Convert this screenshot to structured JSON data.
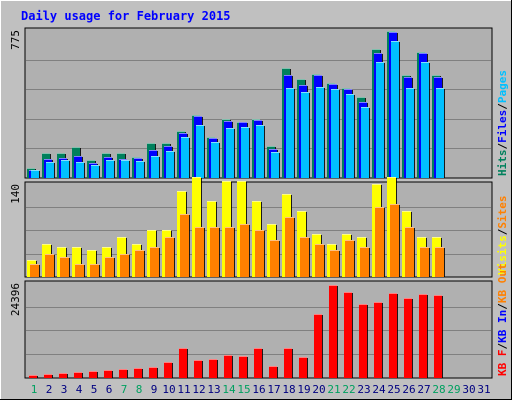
{
  "title": "Daily usage for February 2015",
  "colors": {
    "background": "#C0C0C0",
    "panel": "#B0B0B0",
    "border": "#000000",
    "title_text": "#0000FF",
    "weekday_label": "#000080",
    "weekend_label": "#00A060",
    "hits": "#00805C",
    "files": "#0000FF",
    "pages": "#00C0FF",
    "visits": "#FFFF00",
    "sites": "#FF8000",
    "kbin": "#0000FF",
    "kbout": "#FF8000",
    "kbf": "#FF0000"
  },
  "chart_data": [
    {
      "type": "bar",
      "name": "hits-files-pages",
      "legend": [
        "Hits",
        "Files",
        "Pages"
      ],
      "ymax_label": "775",
      "ymax": 775,
      "categories": [
        "1",
        "2",
        "3",
        "4",
        "5",
        "6",
        "7",
        "8",
        "9",
        "10",
        "11",
        "12",
        "13",
        "14",
        "15",
        "16",
        "17",
        "18",
        "19",
        "20",
        "21",
        "22",
        "23",
        "24",
        "25",
        "26",
        "27",
        "28",
        "29",
        "30",
        "31"
      ],
      "weekend_days": [
        "1",
        "7",
        "8",
        "14",
        "15",
        "21",
        "22",
        "28",
        "29"
      ],
      "series": [
        {
          "name": "Hits",
          "values": [
            50,
            130,
            130,
            160,
            95,
            130,
            130,
            110,
            185,
            185,
            245,
            330,
            215,
            310,
            295,
            310,
            165,
            575,
            520,
            545,
            500,
            470,
            425,
            675,
            770,
            540,
            660,
            540,
            0,
            0,
            0
          ]
        },
        {
          "name": "Files",
          "values": [
            40,
            100,
            105,
            115,
            80,
            110,
            100,
            105,
            145,
            165,
            235,
            325,
            210,
            300,
            295,
            305,
            150,
            540,
            485,
            540,
            490,
            465,
            400,
            655,
            765,
            530,
            655,
            530,
            0,
            0,
            0
          ]
        },
        {
          "name": "Pages",
          "values": [
            40,
            85,
            95,
            85,
            70,
            95,
            95,
            90,
            115,
            140,
            215,
            275,
            190,
            260,
            265,
            280,
            135,
            470,
            450,
            475,
            465,
            440,
            370,
            605,
            715,
            470,
            605,
            470,
            0,
            0,
            0
          ]
        }
      ]
    },
    {
      "type": "bar",
      "name": "visits-sites",
      "legend": [
        "Visits",
        "Sites"
      ],
      "ymax_label": "140",
      "ymax": 140,
      "categories": [
        "1",
        "2",
        "3",
        "4",
        "5",
        "6",
        "7",
        "8",
        "9",
        "10",
        "11",
        "12",
        "13",
        "14",
        "15",
        "16",
        "17",
        "18",
        "19",
        "20",
        "21",
        "22",
        "23",
        "24",
        "25",
        "26",
        "27",
        "28",
        "29",
        "30",
        "31"
      ],
      "series": [
        {
          "name": "Visits",
          "values": [
            25,
            50,
            45,
            45,
            40,
            45,
            60,
            50,
            70,
            70,
            130,
            150,
            115,
            145,
            145,
            115,
            80,
            125,
            100,
            65,
            50,
            65,
            60,
            140,
            150,
            100,
            60,
            60,
            0,
            0,
            0
          ]
        },
        {
          "name": "Sites",
          "values": [
            20,
            35,
            30,
            20,
            20,
            30,
            35,
            40,
            45,
            60,
            95,
            75,
            75,
            75,
            80,
            70,
            55,
            90,
            60,
            50,
            40,
            55,
            45,
            105,
            110,
            75,
            45,
            45,
            0,
            0,
            0
          ]
        }
      ]
    },
    {
      "type": "bar",
      "name": "kbf-kbin-kbout",
      "legend": [
        "KB F",
        "KB In",
        "KB Out"
      ],
      "ymax_label": "24396",
      "ymax": 24396,
      "categories": [
        "1",
        "2",
        "3",
        "4",
        "5",
        "6",
        "7",
        "8",
        "9",
        "10",
        "11",
        "12",
        "13",
        "14",
        "15",
        "16",
        "17",
        "18",
        "19",
        "20",
        "21",
        "22",
        "23",
        "24",
        "25",
        "26",
        "27",
        "28",
        "29",
        "30",
        "31"
      ],
      "series": [
        {
          "name": "KB F",
          "values": [
            700,
            1100,
            1300,
            1500,
            1700,
            2100,
            2300,
            2600,
            2900,
            4000,
            7700,
            4600,
            4800,
            6000,
            5700,
            7600,
            3000,
            7700,
            5300,
            16400,
            23800,
            22000,
            19000,
            19500,
            21900,
            20500,
            21500,
            21300,
            0,
            0,
            0
          ]
        }
      ]
    }
  ]
}
